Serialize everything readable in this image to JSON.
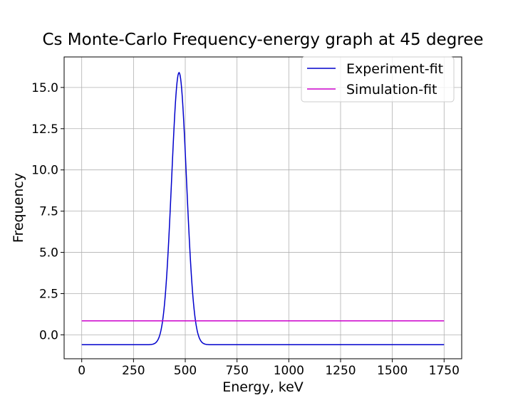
{
  "chart_data": {
    "type": "line",
    "title": "Cs Monte-Carlo Frequency-energy graph at 45 degree",
    "xlabel": "Energy, keV",
    "ylabel": "Frequency",
    "xlim": [
      -85,
      1835
    ],
    "ylim": [
      -1.45,
      16.85
    ],
    "xticks": [
      0,
      250,
      500,
      750,
      1000,
      1250,
      1500,
      1750
    ],
    "xtick_labels": [
      "0",
      "250",
      "500",
      "750",
      "1000",
      "1250",
      "1500",
      "1750"
    ],
    "yticks": [
      0.0,
      2.5,
      5.0,
      7.5,
      10.0,
      12.5,
      15.0
    ],
    "ytick_labels": [
      "0.0",
      "2.5",
      "5.0",
      "7.5",
      "10.0",
      "12.5",
      "15.0"
    ],
    "grid": true,
    "legend_position": "top-right",
    "series": [
      {
        "name": "Experiment-fit",
        "color": "#0000cc",
        "model": "gaussian",
        "baseline": -0.6,
        "amplitude": 16.5,
        "center": 470,
        "sigma": 36,
        "x_range": [
          0,
          1750
        ]
      },
      {
        "name": "Simulation-fit",
        "color": "#cc00cc",
        "model": "constant",
        "value": 0.85,
        "x_range": [
          0,
          1750
        ]
      }
    ]
  }
}
